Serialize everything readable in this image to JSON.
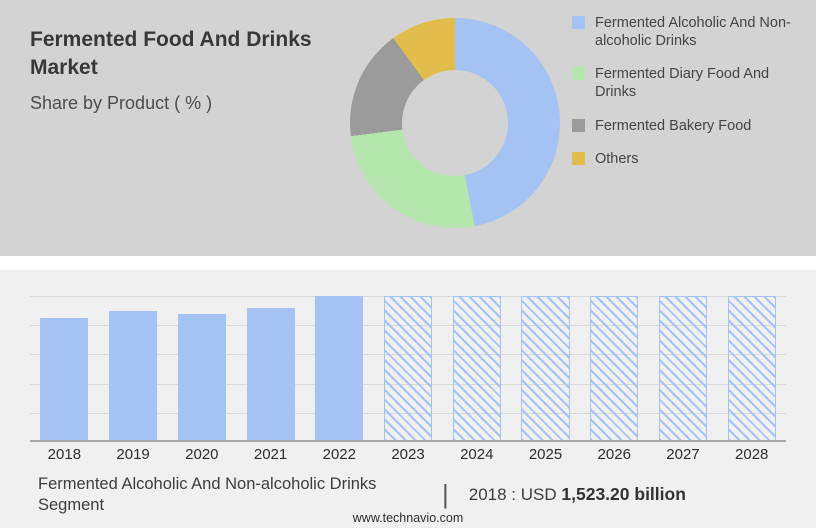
{
  "header": {
    "title": "Fermented Food And Drinks Market",
    "subtitle": "Share by Product ( % )"
  },
  "colors": {
    "top_background": "#d3d3d3",
    "bottom_background": "#f0f0f0",
    "bar_blue": "#a4c2f4",
    "slice_blue": "#a4c2f4",
    "slice_green": "#b5e6ae",
    "slice_gray": "#9b9b9b",
    "slice_gold": "#e3bd4b"
  },
  "chart_data": [
    {
      "type": "pie",
      "donut": true,
      "title": "Share by Product ( % )",
      "legend_position": "right",
      "slices": [
        {
          "label": "Fermented Alcoholic And Non-alcoholic Drinks",
          "value": 47,
          "color": "#a4c2f4"
        },
        {
          "label": "Fermented Diary Food And Drinks",
          "value": 26,
          "color": "#b5e6ae"
        },
        {
          "label": "Fermented Bakery Food",
          "value": 17,
          "color": "#9b9b9b"
        },
        {
          "label": "Others",
          "value": 10,
          "color": "#e3bd4b"
        }
      ]
    },
    {
      "type": "bar",
      "title": "",
      "xlabel": "",
      "ylabel": "",
      "categories": [
        "2018",
        "2019",
        "2020",
        "2021",
        "2022",
        "2023",
        "2024",
        "2025",
        "2026",
        "2027",
        "2028"
      ],
      "values": [
        85,
        90,
        88,
        92,
        100,
        100,
        100,
        100,
        100,
        100,
        100
      ],
      "forecast_mask": [
        false,
        false,
        false,
        false,
        false,
        true,
        true,
        true,
        true,
        true,
        true
      ],
      "bar_color": "#a4c2f4",
      "grid": true,
      "gridline_count": 5,
      "ylim": [
        0,
        100
      ]
    }
  ],
  "footer": {
    "segment_label": "Fermented Alcoholic And Non-alcoholic Drinks Segment",
    "separator": "|",
    "value_prefix": "2018 : USD",
    "value_bold": "1,523.20 billion",
    "website": "www.technavio.com"
  }
}
